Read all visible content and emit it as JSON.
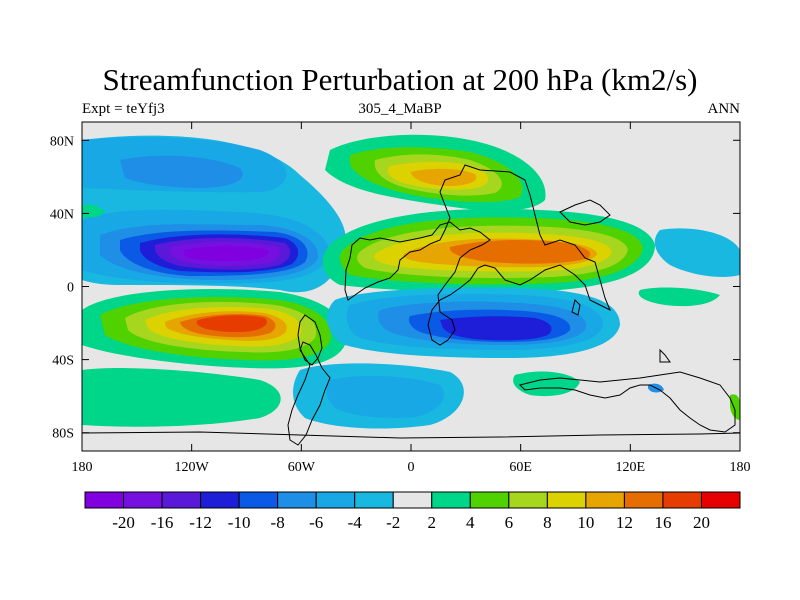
{
  "figure": {
    "title": "Streamfunction Perturbation at 200 hPa (km2/s)",
    "left_label": "Expt = teYfj3",
    "center_label": "305_4_MaBP",
    "right_label": "ANN"
  },
  "axes": {
    "lat_range": [
      -90,
      90
    ],
    "lon_range": [
      -180,
      180
    ],
    "lat_ticks": [
      {
        "value": 80,
        "label": "80N"
      },
      {
        "value": 40,
        "label": "40N"
      },
      {
        "value": 0,
        "label": "0"
      },
      {
        "value": -40,
        "label": "40S"
      },
      {
        "value": -80,
        "label": "80S"
      }
    ],
    "lon_ticks": [
      {
        "value": -180,
        "label": "180"
      },
      {
        "value": -120,
        "label": "120W"
      },
      {
        "value": -60,
        "label": "60W"
      },
      {
        "value": 0,
        "label": "0"
      },
      {
        "value": 60,
        "label": "60E"
      },
      {
        "value": 120,
        "label": "120E"
      },
      {
        "value": 180,
        "label": "180"
      }
    ]
  },
  "colorbar": {
    "colors": [
      "#8000e0",
      "#7510e0",
      "#5a18d8",
      "#1e1ed8",
      "#0a5ae6",
      "#1e8ee6",
      "#18a8e6",
      "#19b8e0",
      "#e6e6e6",
      "#00d68a",
      "#50d200",
      "#a6d61e",
      "#dcd200",
      "#e6a500",
      "#e66e00",
      "#e63c00",
      "#e60000"
    ],
    "labels": [
      "-20",
      "-16",
      "-12",
      "-10",
      "-8",
      "-6",
      "-4",
      "-2",
      "2",
      "4",
      "6",
      "8",
      "10",
      "12",
      "16",
      "20"
    ]
  },
  "map_features": [
    {
      "lat": 20,
      "lon": -98,
      "value": -22,
      "name": "minimum-north-pacific"
    },
    {
      "lat": -18,
      "lon": -95,
      "value": 18,
      "name": "maximum-south-pacific"
    },
    {
      "lat": 20,
      "lon": 55,
      "value": 14,
      "name": "maximum-asia"
    },
    {
      "lat": -25,
      "lon": 45,
      "value": -12,
      "name": "minimum-indian-ocean"
    },
    {
      "lat": 60,
      "lon": 30,
      "value": 10,
      "name": "maximum-eurasia"
    },
    {
      "lat": 65,
      "lon": -100,
      "value": -6,
      "name": "minimum-arctic-america"
    }
  ]
}
